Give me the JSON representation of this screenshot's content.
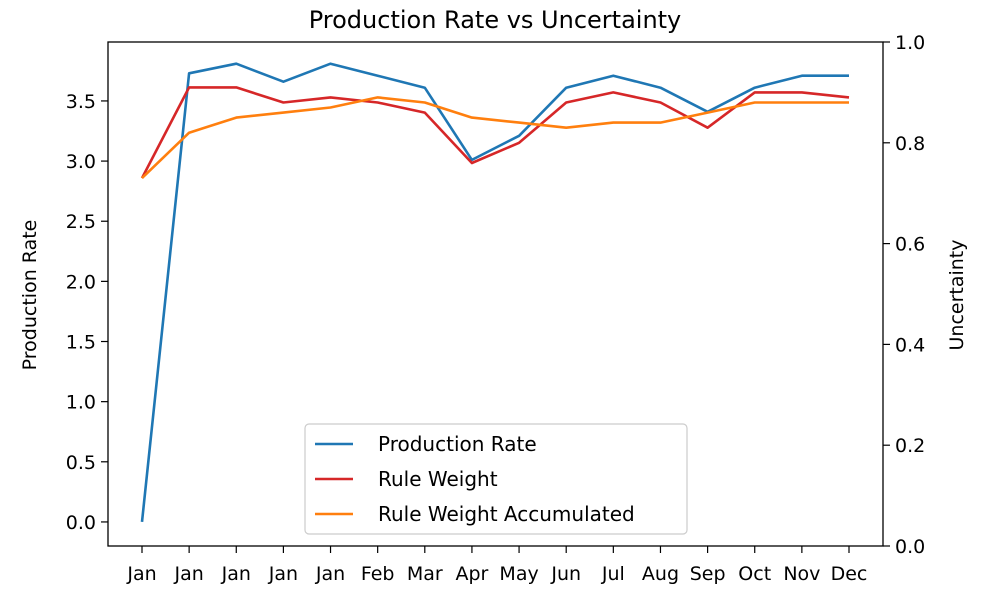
{
  "chart_data": {
    "type": "line",
    "title": "Production Rate vs Uncertainty",
    "ylabel": "Production Rate",
    "y2label": "Uncertainty",
    "ylim": [
      -0.2,
      3.99
    ],
    "y2lim": [
      0.0,
      1.0
    ],
    "yticks": [
      "0.0",
      "0.5",
      "1.0",
      "1.5",
      "2.0",
      "2.5",
      "3.0",
      "3.5"
    ],
    "y2ticks": [
      "0.0",
      "0.2",
      "0.4",
      "0.6",
      "0.8",
      "1.0"
    ],
    "categories": [
      "Jan",
      "Jan",
      "Jan",
      "Jan",
      "Jan",
      "Feb",
      "Mar",
      "Apr",
      "May",
      "Jun",
      "Jul",
      "Aug",
      "Sep",
      "Oct",
      "Nov",
      "Dec"
    ],
    "legend_position": "lower-center",
    "series": [
      {
        "name": "Production Rate",
        "axis": "left",
        "color": "#1f77b4",
        "values": [
          0.0,
          3.73,
          3.81,
          3.66,
          3.81,
          3.71,
          3.61,
          3.01,
          3.21,
          3.61,
          3.71,
          3.61,
          3.41,
          3.61,
          3.71,
          3.71
        ]
      },
      {
        "name": "Rule Weight",
        "axis": "right",
        "color": "#d62728",
        "values": [
          0.73,
          0.91,
          0.91,
          0.88,
          0.89,
          0.88,
          0.86,
          0.76,
          0.8,
          0.88,
          0.9,
          0.88,
          0.83,
          0.9,
          0.9,
          0.89
        ]
      },
      {
        "name": "Rule Weight Accumulated",
        "axis": "right",
        "color": "#ff7f0e",
        "values": [
          0.73,
          0.82,
          0.85,
          0.86,
          0.87,
          0.89,
          0.88,
          0.85,
          0.84,
          0.83,
          0.84,
          0.84,
          0.86,
          0.88,
          0.88,
          0.88
        ]
      }
    ]
  }
}
